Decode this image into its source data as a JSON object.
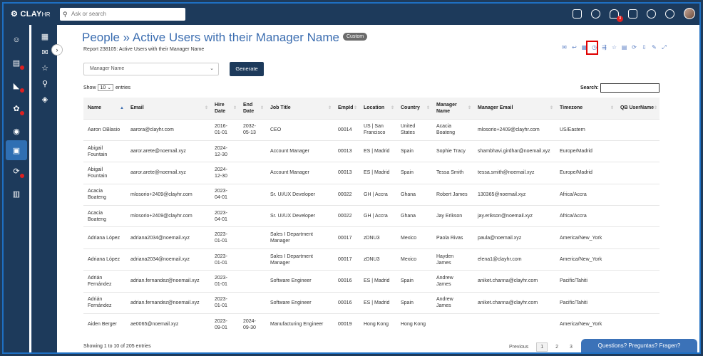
{
  "app": {
    "logo": "CLAY",
    "logo_suffix": "HR",
    "search_placeholder": "Ask or search",
    "notification_count": "3"
  },
  "page": {
    "title": "People » Active Users with their Manager Name",
    "badge": "Custom",
    "subtitle": "Report 238105: Active Users with their Manager Name"
  },
  "filter": {
    "select_value": "Manager Name",
    "generate_label": "Generate"
  },
  "table_controls": {
    "show_label": "Show",
    "length_value": "10",
    "entries_label": "entries",
    "search_label": "Search:"
  },
  "table": {
    "columns": [
      "Name",
      "Email",
      "Hire Date",
      "End Date",
      "Job Title",
      "EmpId",
      "Location",
      "Country",
      "Manager Name",
      "Manager Email",
      "Timezone",
      "QB UserName"
    ],
    "rows": [
      [
        "Aaron OBlasio",
        "aarora@clayhr.com",
        "2016-01-01",
        "2032-05-13",
        "CEO",
        "00014",
        "US | San Francisco",
        "United States",
        "Acacia Boateng",
        "mlosorio+2409@clayhr.com",
        "US/Eastern",
        ""
      ],
      [
        "Abigail Fountain",
        "aaror.arete@noemail.xyz",
        "2024-12-30",
        "",
        "Account Manager",
        "00013",
        "ES | Madrid",
        "Spain",
        "Sophie Tracy",
        "shambhavi.girdhar@noemail.xyz",
        "Europe/Madrid",
        ""
      ],
      [
        "Abigail Fountain",
        "aaror.arete@noemail.xyz",
        "2024-12-30",
        "",
        "Account Manager",
        "00013",
        "ES | Madrid",
        "Spain",
        "Tessa Smith",
        "tessa.smith@noemail.xyz",
        "Europe/Madrid",
        ""
      ],
      [
        "Acacia Boateng",
        "mlosorio+2409@clayhr.com",
        "2023-04-01",
        "",
        "Sr. UI/UX Developer",
        "00022",
        "GH | Accra",
        "Ghana",
        "Robert James",
        "130365@noemail.xyz",
        "Africa/Accra",
        ""
      ],
      [
        "Acacia Boateng",
        "mlosorio+2409@clayhr.com",
        "2023-04-01",
        "",
        "Sr. UI/UX Developer",
        "00022",
        "GH | Accra",
        "Ghana",
        "Jay Erikson",
        "jay.erikson@noemail.xyz",
        "Africa/Accra",
        ""
      ],
      [
        "Adriana López",
        "adriana2034@noemail.xyz",
        "2023-01-01",
        "",
        "Sales I Department Manager",
        "00017",
        "zDNU3",
        "Mexico",
        "Paola Rivas",
        "paula@noemail.xyz",
        "America/New_York",
        ""
      ],
      [
        "Adriana López",
        "adriana2034@noemail.xyz",
        "2023-01-01",
        "",
        "Sales I Department Manager",
        "00017",
        "zDNU3",
        "Mexico",
        "Hayden James",
        "elena1@clayhr.com",
        "America/New_York",
        ""
      ],
      [
        "Adrián Fernández",
        "adrian.fernandez@noemail.xyz",
        "2023-01-01",
        "",
        "Software Engineer",
        "00016",
        "ES | Madrid",
        "Spain",
        "Andrew James",
        "aniket.channa@clayhr.com",
        "Pacific/Tahiti",
        ""
      ],
      [
        "Adrián Fernández",
        "adrian.fernandez@noemail.xyz",
        "2023-01-01",
        "",
        "Software Engineer",
        "00016",
        "ES | Madrid",
        "Spain",
        "Andrew James",
        "aniket.channa@clayhr.com",
        "Pacific/Tahiti",
        ""
      ],
      [
        "Aiden Berger",
        "ae0065@noemail.xyz",
        "2023-09-01",
        "2024-09-30",
        "Manufacturing Engineer",
        "00019",
        "Hong Kong",
        "Hong Kong",
        "",
        "",
        "America/New_York",
        ""
      ]
    ]
  },
  "footer": {
    "info": "Showing 1 to 10 of 205 entries",
    "previous": "Previous",
    "pages": [
      "1",
      "2",
      "3"
    ]
  },
  "chat": {
    "label": "Questions? Preguntas? Fragen?"
  }
}
